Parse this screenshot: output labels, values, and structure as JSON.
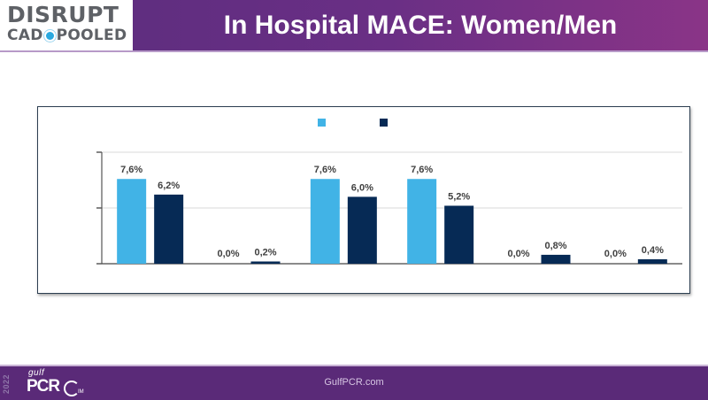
{
  "header": {
    "logo_line1": "DISRUPT",
    "logo_line2_left": "CAD",
    "logo_line2_right": "POOLED",
    "title": "In Hospital MACE: Women/Men"
  },
  "footer": {
    "year": "2022",
    "brand_small": "gulf",
    "brand_main": "PCR",
    "brand_suffix": "IM",
    "url": "GulfPCR.com"
  },
  "colors": {
    "women": "#41b3e6",
    "men": "#062a55",
    "header_purple": "#5a2d7d",
    "footer_purple": "#5a2a78"
  },
  "chart_data": {
    "type": "bar",
    "title": "",
    "xlabel": "",
    "ylabel": "",
    "ylim": [
      0,
      10
    ],
    "yticks": [
      0,
      5,
      10
    ],
    "ytick_labels_visible": false,
    "grid": true,
    "legend": "top-center",
    "categories": [
      "",
      "",
      "",
      "",
      "",
      ""
    ],
    "series": [
      {
        "name": "",
        "color": "#41b3e6",
        "values": [
          7.6,
          0.0,
          7.6,
          7.6,
          0.0,
          0.0
        ],
        "labels": [
          "7,6%",
          "0,0%",
          "7,6%",
          "7,6%",
          "0,0%",
          "0,0%"
        ]
      },
      {
        "name": "",
        "color": "#062a55",
        "values": [
          6.2,
          0.2,
          6.0,
          5.2,
          0.8,
          0.4
        ],
        "labels": [
          "6,2%",
          "0,2%",
          "6,0%",
          "5,2%",
          "0,8%",
          "0,4%"
        ]
      }
    ]
  }
}
